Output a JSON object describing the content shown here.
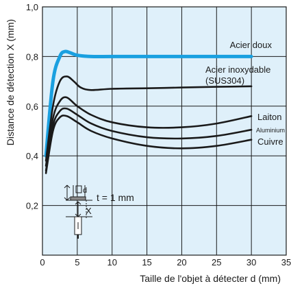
{
  "chart_data": {
    "type": "line",
    "ylabel": "Distance de détection X (mm)",
    "xlabel": "Taille de l'objet à détecter d (mm)",
    "xlim": [
      0,
      35
    ],
    "ylim": [
      0.0,
      1.0
    ],
    "x_ticks": [
      0,
      5,
      10,
      15,
      20,
      25,
      30,
      35
    ],
    "y_ticks": [
      0.2,
      0.4,
      0.6,
      0.8,
      1.0
    ],
    "x_tick_labels": [
      "0",
      "5",
      "10",
      "15",
      "20",
      "25",
      "30",
      "35"
    ],
    "y_tick_labels": [
      "0,2",
      "0,4",
      "0,6",
      "0,8",
      "1,0"
    ],
    "grid": true,
    "colors": {
      "plot_bg": "#dff0fa",
      "grid": "#1a1a1a",
      "highlight": "#1aa0e0",
      "line": "#1a1a1a"
    },
    "series": [
      {
        "name": "Acier doux",
        "color": "#1aa0e0",
        "x": [
          0.5,
          1.5,
          2.5,
          3.2,
          4,
          5,
          7,
          10,
          15,
          20,
          25,
          30
        ],
        "y": [
          0.4,
          0.7,
          0.8,
          0.82,
          0.815,
          0.805,
          0.8,
          0.8,
          0.8,
          0.8,
          0.8,
          0.8
        ]
      },
      {
        "name": "Acier inoxydable (SUS304)",
        "color": "#1a1a1a",
        "x": [
          0.5,
          1.5,
          2.5,
          3.5,
          4.5,
          5.5,
          7,
          10,
          15,
          20,
          25,
          30
        ],
        "y": [
          0.38,
          0.6,
          0.7,
          0.72,
          0.7,
          0.675,
          0.665,
          0.67,
          0.672,
          0.675,
          0.678,
          0.68
        ]
      },
      {
        "name": "Laiton",
        "color": "#1a1a1a",
        "x": [
          0.5,
          1.5,
          2.5,
          3.5,
          5,
          7,
          10,
          15,
          20,
          25,
          30
        ],
        "y": [
          0.36,
          0.55,
          0.62,
          0.635,
          0.6,
          0.565,
          0.535,
          0.515,
          0.515,
          0.53,
          0.56
        ]
      },
      {
        "name": "Aluminium",
        "color": "#1a1a1a",
        "x": [
          0.5,
          1.5,
          2.5,
          3.5,
          5,
          7,
          10,
          15,
          20,
          25,
          30
        ],
        "y": [
          0.34,
          0.52,
          0.58,
          0.59,
          0.565,
          0.53,
          0.5,
          0.475,
          0.47,
          0.48,
          0.505
        ]
      },
      {
        "name": "Cuivre",
        "color": "#1a1a1a",
        "x": [
          0.5,
          1.5,
          2.5,
          3.5,
          5,
          7,
          10,
          15,
          20,
          25,
          30
        ],
        "y": [
          0.33,
          0.5,
          0.555,
          0.56,
          0.535,
          0.5,
          0.47,
          0.44,
          0.43,
          0.44,
          0.465
        ]
      }
    ],
    "annotations": {
      "thickness": "t = 1 mm",
      "d_label": "d",
      "x_label": "X"
    }
  }
}
